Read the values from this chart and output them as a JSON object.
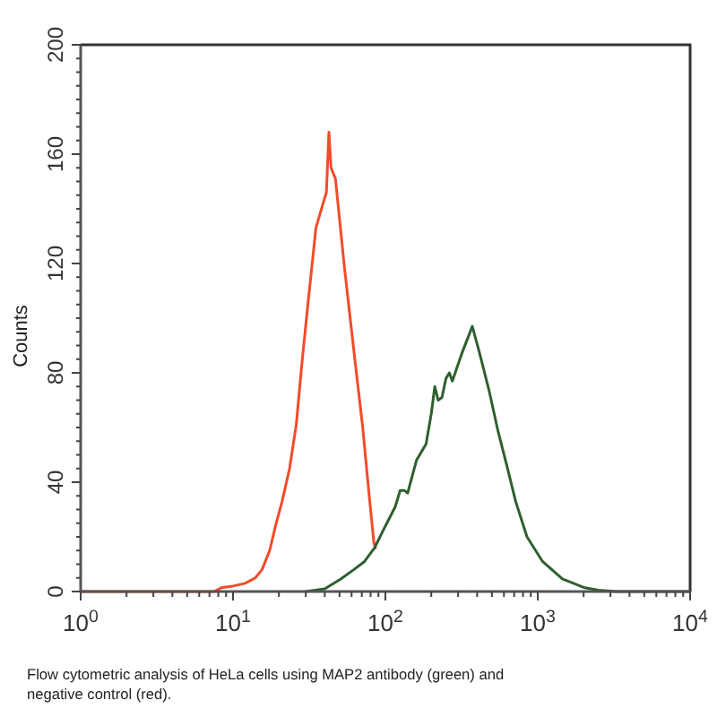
{
  "chart_data": {
    "type": "line",
    "ylabel": "Counts",
    "log": "x",
    "xlim": [
      1,
      10000
    ],
    "ylim": [
      0,
      200
    ],
    "xticks": [
      {
        "value": 1,
        "label": "10$^{0}$"
      },
      {
        "value": 2,
        "label": null
      },
      {
        "value": 3,
        "label": null
      },
      {
        "value": 4,
        "label": null
      },
      {
        "value": 5,
        "label": null
      },
      {
        "value": 6,
        "label": null
      },
      {
        "value": 7,
        "label": null
      },
      {
        "value": 8,
        "label": null
      },
      {
        "value": 9,
        "label": null
      },
      {
        "value": 10,
        "label": "10$^{1}$"
      },
      {
        "value": 20,
        "label": null
      },
      {
        "value": 30,
        "label": null
      },
      {
        "value": 40,
        "label": null
      },
      {
        "value": 50,
        "label": null
      },
      {
        "value": 60,
        "label": null
      },
      {
        "value": 70,
        "label": null
      },
      {
        "value": 80,
        "label": null
      },
      {
        "value": 90,
        "label": null
      },
      {
        "value": 100,
        "label": "10$^{2}$"
      },
      {
        "value": 200,
        "label": null
      },
      {
        "value": 300,
        "label": null
      },
      {
        "value": 400,
        "label": null
      },
      {
        "value": 500,
        "label": null
      },
      {
        "value": 600,
        "label": null
      },
      {
        "value": 700,
        "label": null
      },
      {
        "value": 800,
        "label": null
      },
      {
        "value": 900,
        "label": null
      },
      {
        "value": 1000,
        "label": "10$^{3}$"
      },
      {
        "value": 2000,
        "label": null
      },
      {
        "value": 3000,
        "label": null
      },
      {
        "value": 4000,
        "label": null
      },
      {
        "value": 5000,
        "label": null
      },
      {
        "value": 6000,
        "label": null
      },
      {
        "value": 7000,
        "label": null
      },
      {
        "value": 8000,
        "label": null
      },
      {
        "value": 9000,
        "label": null
      },
      {
        "value": 10000,
        "label": "10$^{4}$"
      }
    ],
    "yticks": [
      0,
      {
        "value": 5,
        "label": null
      },
      {
        "value": 10,
        "label": null
      },
      {
        "value": 15,
        "label": null
      },
      {
        "value": 20,
        "label": null
      },
      {
        "value": 25,
        "label": null
      },
      {
        "value": 30,
        "label": null
      },
      {
        "value": 35,
        "label": null
      },
      40,
      {
        "value": 45,
        "label": null
      },
      {
        "value": 50,
        "label": null
      },
      {
        "value": 55,
        "label": null
      },
      {
        "value": 60,
        "label": null
      },
      {
        "value": 65,
        "label": null
      },
      {
        "value": 70,
        "label": null
      },
      {
        "value": 75,
        "label": null
      },
      80,
      {
        "value": 85,
        "label": null
      },
      {
        "value": 90,
        "label": null
      },
      {
        "value": 95,
        "label": null
      },
      {
        "value": 100,
        "label": null
      },
      {
        "value": 105,
        "label": null
      },
      {
        "value": 110,
        "label": null
      },
      {
        "value": 115,
        "label": null
      },
      120,
      {
        "value": 125,
        "label": null
      },
      {
        "value": 130,
        "label": null
      },
      {
        "value": 135,
        "label": null
      },
      {
        "value": 140,
        "label": null
      },
      {
        "value": 145,
        "label": null
      },
      {
        "value": 150,
        "label": null
      },
      {
        "value": 155,
        "label": null
      },
      160,
      {
        "value": 165,
        "label": null
      },
      {
        "value": 170,
        "label": null
      },
      {
        "value": 175,
        "label": null
      },
      {
        "value": 180,
        "label": null
      },
      {
        "value": 185,
        "label": null
      },
      {
        "value": 190,
        "label": null
      },
      {
        "value": 195,
        "label": null
      },
      200
    ],
    "series": [
      {
        "color": "#f24b2a",
        "x": [
          1,
          7.5,
          8.5,
          10,
          12,
          14,
          15.5,
          17.4,
          19,
          21,
          23.5,
          26,
          28.5,
          31,
          35,
          39,
          41,
          42.6,
          44,
          47,
          54,
          63,
          71,
          78,
          84,
          86
        ],
        "values": [
          0,
          0,
          1.5,
          2,
          3,
          5,
          8,
          15,
          24,
          33,
          45,
          61,
          85,
          105,
          133,
          142,
          146,
          168,
          155,
          151,
          118,
          85,
          60,
          36,
          18,
          16
        ]
      },
      {
        "color": "#2f5f2f",
        "x": [
          30,
          40,
          51,
          62,
          73,
          85,
          96,
          116,
          125,
          133,
          140,
          160,
          185,
          200,
          211,
          222,
          235,
          250,
          263,
          275,
          317,
          372,
          416,
          477,
          547,
          627,
          716,
          850,
          1075,
          1450,
          2000,
          2500,
          3300,
          10000
        ],
        "values": [
          0,
          1,
          4.6,
          8,
          11,
          16,
          22,
          31,
          37,
          37,
          36,
          48,
          54,
          65,
          75,
          70,
          71,
          78,
          80,
          77,
          87,
          97,
          87,
          74,
          59,
          46,
          33,
          20,
          11,
          4.6,
          1.5,
          0.5,
          0,
          0
        ]
      }
    ],
    "annotations": [
      "Flow cytometric analysis of HeLa cells using MAP2 antibody (green) and negative control (red)."
    ]
  }
}
